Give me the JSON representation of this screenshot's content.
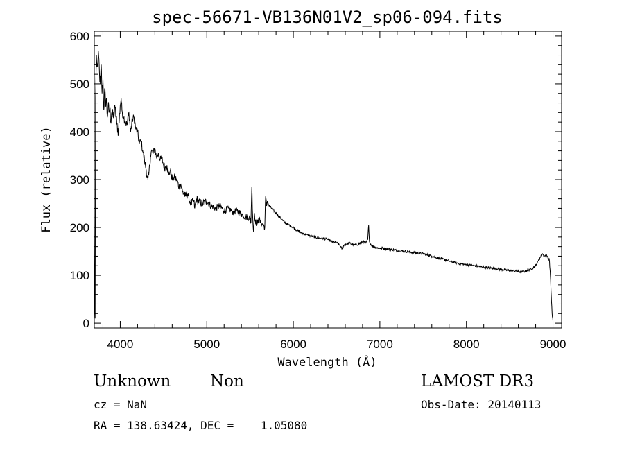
{
  "chart_data": {
    "type": "line",
    "title": "spec-56671-VB136N01V2_sp06-094.fits",
    "xlabel": "Wavelength (Å)",
    "ylabel": "Flux (relative)",
    "xlim": [
      3700,
      9100
    ],
    "ylim": [
      -10,
      610
    ],
    "xticks": [
      4000,
      5000,
      6000,
      7000,
      8000,
      9000
    ],
    "yticks": [
      0,
      100,
      200,
      300,
      400,
      500,
      600
    ],
    "grid": false,
    "series": [
      {
        "color": "#000000",
        "x": [
          3700,
          3705,
          3710,
          3715,
          3720,
          3725,
          3730,
          3740,
          3750,
          3760,
          3770,
          3780,
          3790,
          3800,
          3810,
          3820,
          3830,
          3840,
          3850,
          3860,
          3870,
          3880,
          3890,
          3900,
          3920,
          3940,
          3960,
          3980,
          4000,
          4010,
          4020,
          4040,
          4060,
          4080,
          4100,
          4120,
          4140,
          4160,
          4180,
          4200,
          4220,
          4240,
          4260,
          4280,
          4300,
          4310,
          4320,
          4330,
          4340,
          4350,
          4360,
          4380,
          4400,
          4420,
          4440,
          4460,
          4480,
          4500,
          4520,
          4540,
          4560,
          4580,
          4600,
          4620,
          4650,
          4680,
          4700,
          4720,
          4750,
          4780,
          4800,
          4820,
          4850,
          4861,
          4880,
          4900,
          4950,
          5000,
          5050,
          5100,
          5150,
          5200,
          5250,
          5300,
          5350,
          5400,
          5450,
          5500,
          5510,
          5520,
          5530,
          5540,
          5550,
          5560,
          5580,
          5600,
          5620,
          5650,
          5670,
          5680,
          5690,
          5700,
          5720,
          5750,
          5800,
          5850,
          5900,
          5950,
          6000,
          6050,
          6100,
          6150,
          6200,
          6250,
          6300,
          6350,
          6400,
          6450,
          6500,
          6540,
          6560,
          6580,
          6600,
          6650,
          6700,
          6750,
          6800,
          6840,
          6860,
          6870,
          6880,
          6900,
          6950,
          7000,
          7100,
          7200,
          7300,
          7400,
          7500,
          7600,
          7700,
          7800,
          7900,
          8000,
          8100,
          8200,
          8300,
          8400,
          8500,
          8600,
          8650,
          8700,
          8750,
          8800,
          8830,
          8860,
          8880,
          8900,
          8920,
          8940,
          8950,
          8960,
          8970,
          8980,
          8990,
          9000
        ],
        "y": [
          240,
          50,
          10,
          470,
          520,
          560,
          535,
          545,
          560,
          520,
          500,
          540,
          480,
          510,
          445,
          490,
          460,
          470,
          430,
          455,
          440,
          450,
          420,
          440,
          430,
          450,
          415,
          400,
          455,
          470,
          445,
          430,
          420,
          415,
          440,
          400,
          425,
          430,
          405,
          400,
          375,
          380,
          360,
          340,
          320,
          305,
          300,
          310,
          330,
          350,
          360,
          355,
          365,
          345,
          355,
          340,
          345,
          330,
          325,
          330,
          310,
          320,
          300,
          305,
          300,
          285,
          290,
          275,
          265,
          270,
          255,
          250,
          255,
          240,
          260,
          255,
          250,
          255,
          245,
          240,
          245,
          235,
          240,
          232,
          235,
          228,
          222,
          220,
          210,
          285,
          225,
          190,
          230,
          215,
          205,
          220,
          210,
          205,
          200,
          265,
          245,
          255,
          245,
          240,
          230,
          220,
          210,
          205,
          200,
          193,
          188,
          185,
          182,
          180,
          178,
          177,
          175,
          170,
          168,
          162,
          155,
          162,
          165,
          167,
          163,
          165,
          170,
          168,
          175,
          205,
          170,
          163,
          158,
          157,
          155,
          152,
          150,
          147,
          145,
          140,
          135,
          130,
          125,
          122,
          120,
          117,
          115,
          112,
          110,
          108,
          107,
          110,
          113,
          120,
          130,
          140,
          145,
          140,
          142,
          138,
          135,
          130,
          100,
          60,
          20,
          5
        ]
      }
    ]
  },
  "info": {
    "object_type": "Unknown",
    "object_subtype": "Non",
    "survey": "LAMOST DR3",
    "cz": "cz = NaN",
    "obs_date": "Obs-Date: 20140113",
    "coords": "RA = 138.63424, DEC =    1.05080"
  }
}
